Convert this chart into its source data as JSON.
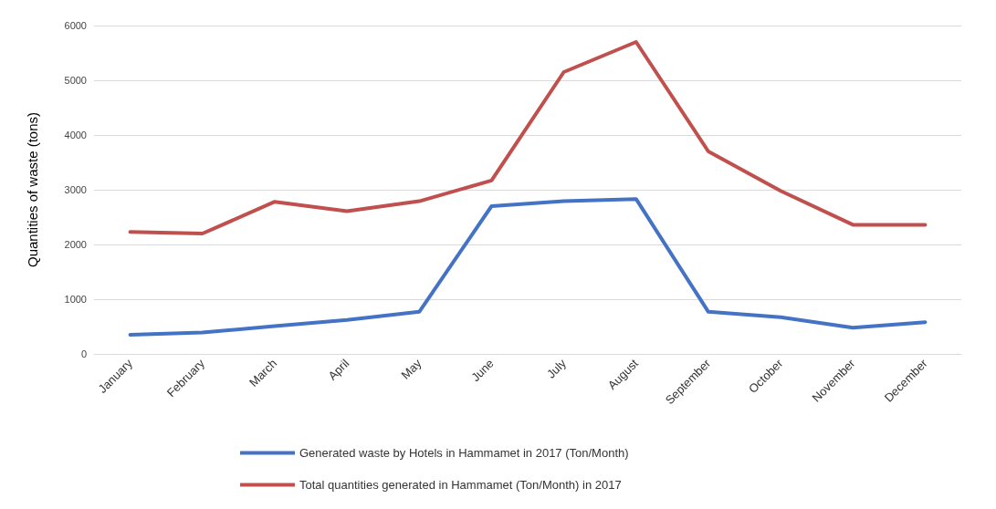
{
  "chart_data": {
    "type": "line",
    "ylabel": "Quantities of waste (tons)",
    "categories": [
      "January",
      "February",
      "March",
      "April",
      "May",
      "June",
      "July",
      "August",
      "September",
      "October",
      "November",
      "December"
    ],
    "series": [
      {
        "name": "Generated waste by Hotels in Hammamet in 2017 (Ton/Month)",
        "color": "#4472c4",
        "values": [
          350,
          390,
          510,
          620,
          770,
          2700,
          2790,
          2830,
          770,
          670,
          480,
          580
        ]
      },
      {
        "name": "Total quantities generated in Hammamet (Ton/Month) in 2017",
        "color": "#c0504d",
        "values": [
          2230,
          2200,
          2780,
          2610,
          2790,
          3170,
          5150,
          5700,
          3700,
          2980,
          2360,
          2360
        ]
      }
    ],
    "ylim": [
      0,
      6000
    ],
    "yticks": [
      0,
      1000,
      2000,
      3000,
      4000,
      5000,
      6000
    ],
    "grid": "y",
    "legend": "bottom",
    "marker": "none",
    "line_style": "solid"
  }
}
